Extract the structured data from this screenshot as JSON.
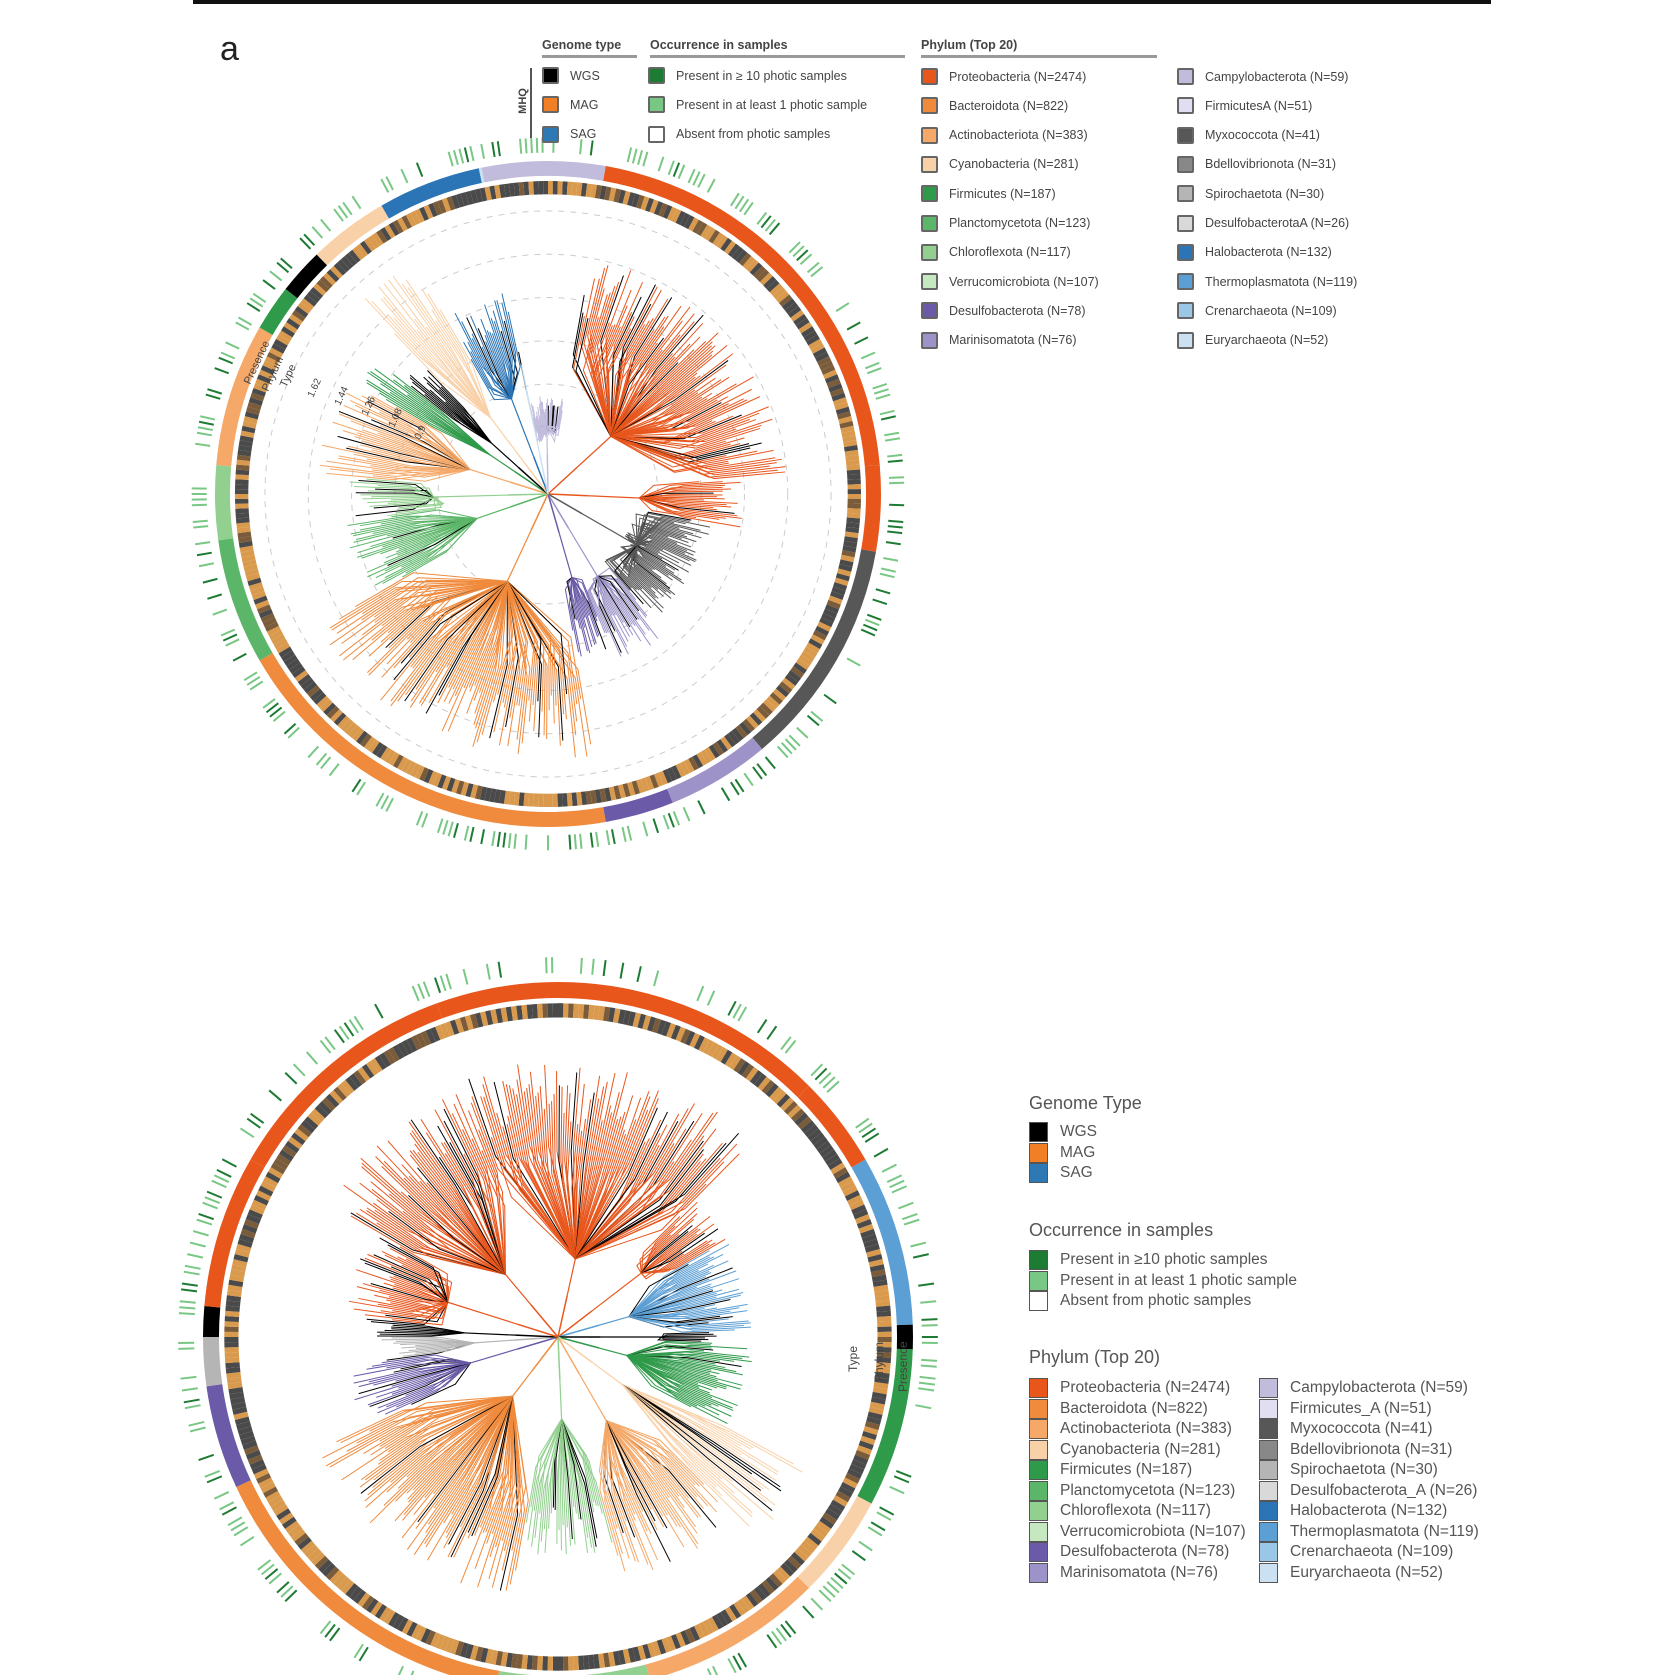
{
  "panel_letter": "a",
  "colors": {
    "WGS": "#000000",
    "MAG": "#f07f25",
    "SAG": "#2e78b4",
    "present10": "#1e7b34",
    "present1": "#79c784",
    "absent": "#ffffff",
    "Proteobacteria": "#e8561c",
    "Bacteroidota": "#f08a3c",
    "Actinobacteriota": "#f5a868",
    "Cyanobacteria": "#f9d1a8",
    "Firmicutes": "#2f9a4a",
    "Planctomycetota": "#5cb669",
    "Chloroflexota": "#92d08f",
    "Verrucomicrobiota": "#c6e8c0",
    "Desulfobacterota": "#6a5aa8",
    "Marinisomatota": "#9d93c8",
    "Campylobacterota": "#c1bcdc",
    "FirmicutesA": "#e0def0",
    "Myxococcota": "#575757",
    "Bdellovibrionota": "#888888",
    "Spirochaetota": "#b5b5b5",
    "DesulfobacterotaA": "#d9d9d9",
    "Halobacterota": "#2b74b5",
    "Thermoplasmatota": "#5c9fd4",
    "Crenarchaeota": "#9bc7e6",
    "Euryarchaeota": "#cbe1f1"
  },
  "top": {
    "genome_type": {
      "title": "Genome type",
      "group_label": "MHQ",
      "items": [
        "WGS",
        "MAG",
        "SAG"
      ]
    },
    "occurrence": {
      "title": "Occurrence in samples",
      "items": [
        "Present in ≥ 10 photic samples",
        "Present in at least 1 photic sample",
        "Absent from photic samples"
      ]
    },
    "phylum": {
      "title": "Phylum (Top 20)",
      "col1": [
        "Proteobacteria (N=2474)",
        "Bacteroidota (N=822)",
        "Actinobacteriota (N=383)",
        "Cyanobacteria (N=281)",
        "Firmicutes (N=187)",
        "Planctomycetota (N=123)",
        "Chloroflexota (N=117)",
        "Verrucomicrobiota (N=107)",
        "Desulfobacterota (N=78)",
        "Marinisomatota (N=76)"
      ],
      "col2": [
        "Campylobacterota (N=59)",
        "FirmicutesA (N=51)",
        "Myxococcota (N=41)",
        "Bdellovibrionota (N=31)",
        "Spirochaetota (N=30)",
        "DesulfobacterotaA (N=26)",
        "Halobacterota (N=132)",
        "Thermoplasmatota (N=119)",
        "Crenarchaeota (N=109)",
        "Euryarchaeota (N=52)"
      ]
    },
    "ring_labels": [
      "Presence",
      "Phylum",
      "Type"
    ],
    "scale_labels": [
      "1.62",
      "1.44",
      "1.26",
      "1.08",
      "0.9"
    ]
  },
  "bottom": {
    "genome_type": {
      "title": "Genome Type",
      "items": [
        "WGS",
        "MAG",
        "SAG"
      ]
    },
    "occurrence": {
      "title": "Occurrence in samples",
      "items": [
        "Present in ≥10 photic samples",
        "Present in at least 1 photic sample",
        "Absent from photic samples"
      ]
    },
    "phylum": {
      "title": "Phylum (Top 20)",
      "col1": [
        "Proteobacteria (N=2474)",
        "Bacteroidota (N=822)",
        "Actinobacteriota (N=383)",
        "Cyanobacteria (N=281)",
        "Firmicutes (N=187)",
        "Planctomycetota (N=123)",
        "Chloroflexota (N=117)",
        "Verrucomicrobiota (N=107)",
        "Desulfobacterota (N=78)",
        "Marinisomatota (N=76)"
      ],
      "col2": [
        "Campylobacterota (N=59)",
        "Firmicutes_A (N=51)",
        "Myxococcota (N=41)",
        "Bdellovibrionota (N=31)",
        "Spirochaetota (N=30)",
        "Desulfobacterota_A (N=26)",
        "Halobacterota (N=132)",
        "Thermoplasmatota (N=119)",
        "Crenarchaeota (N=109)",
        "Euryarchaeota (N=52)"
      ]
    },
    "ring_labels": [
      "Type",
      "Phylum",
      "Presence"
    ]
  }
}
